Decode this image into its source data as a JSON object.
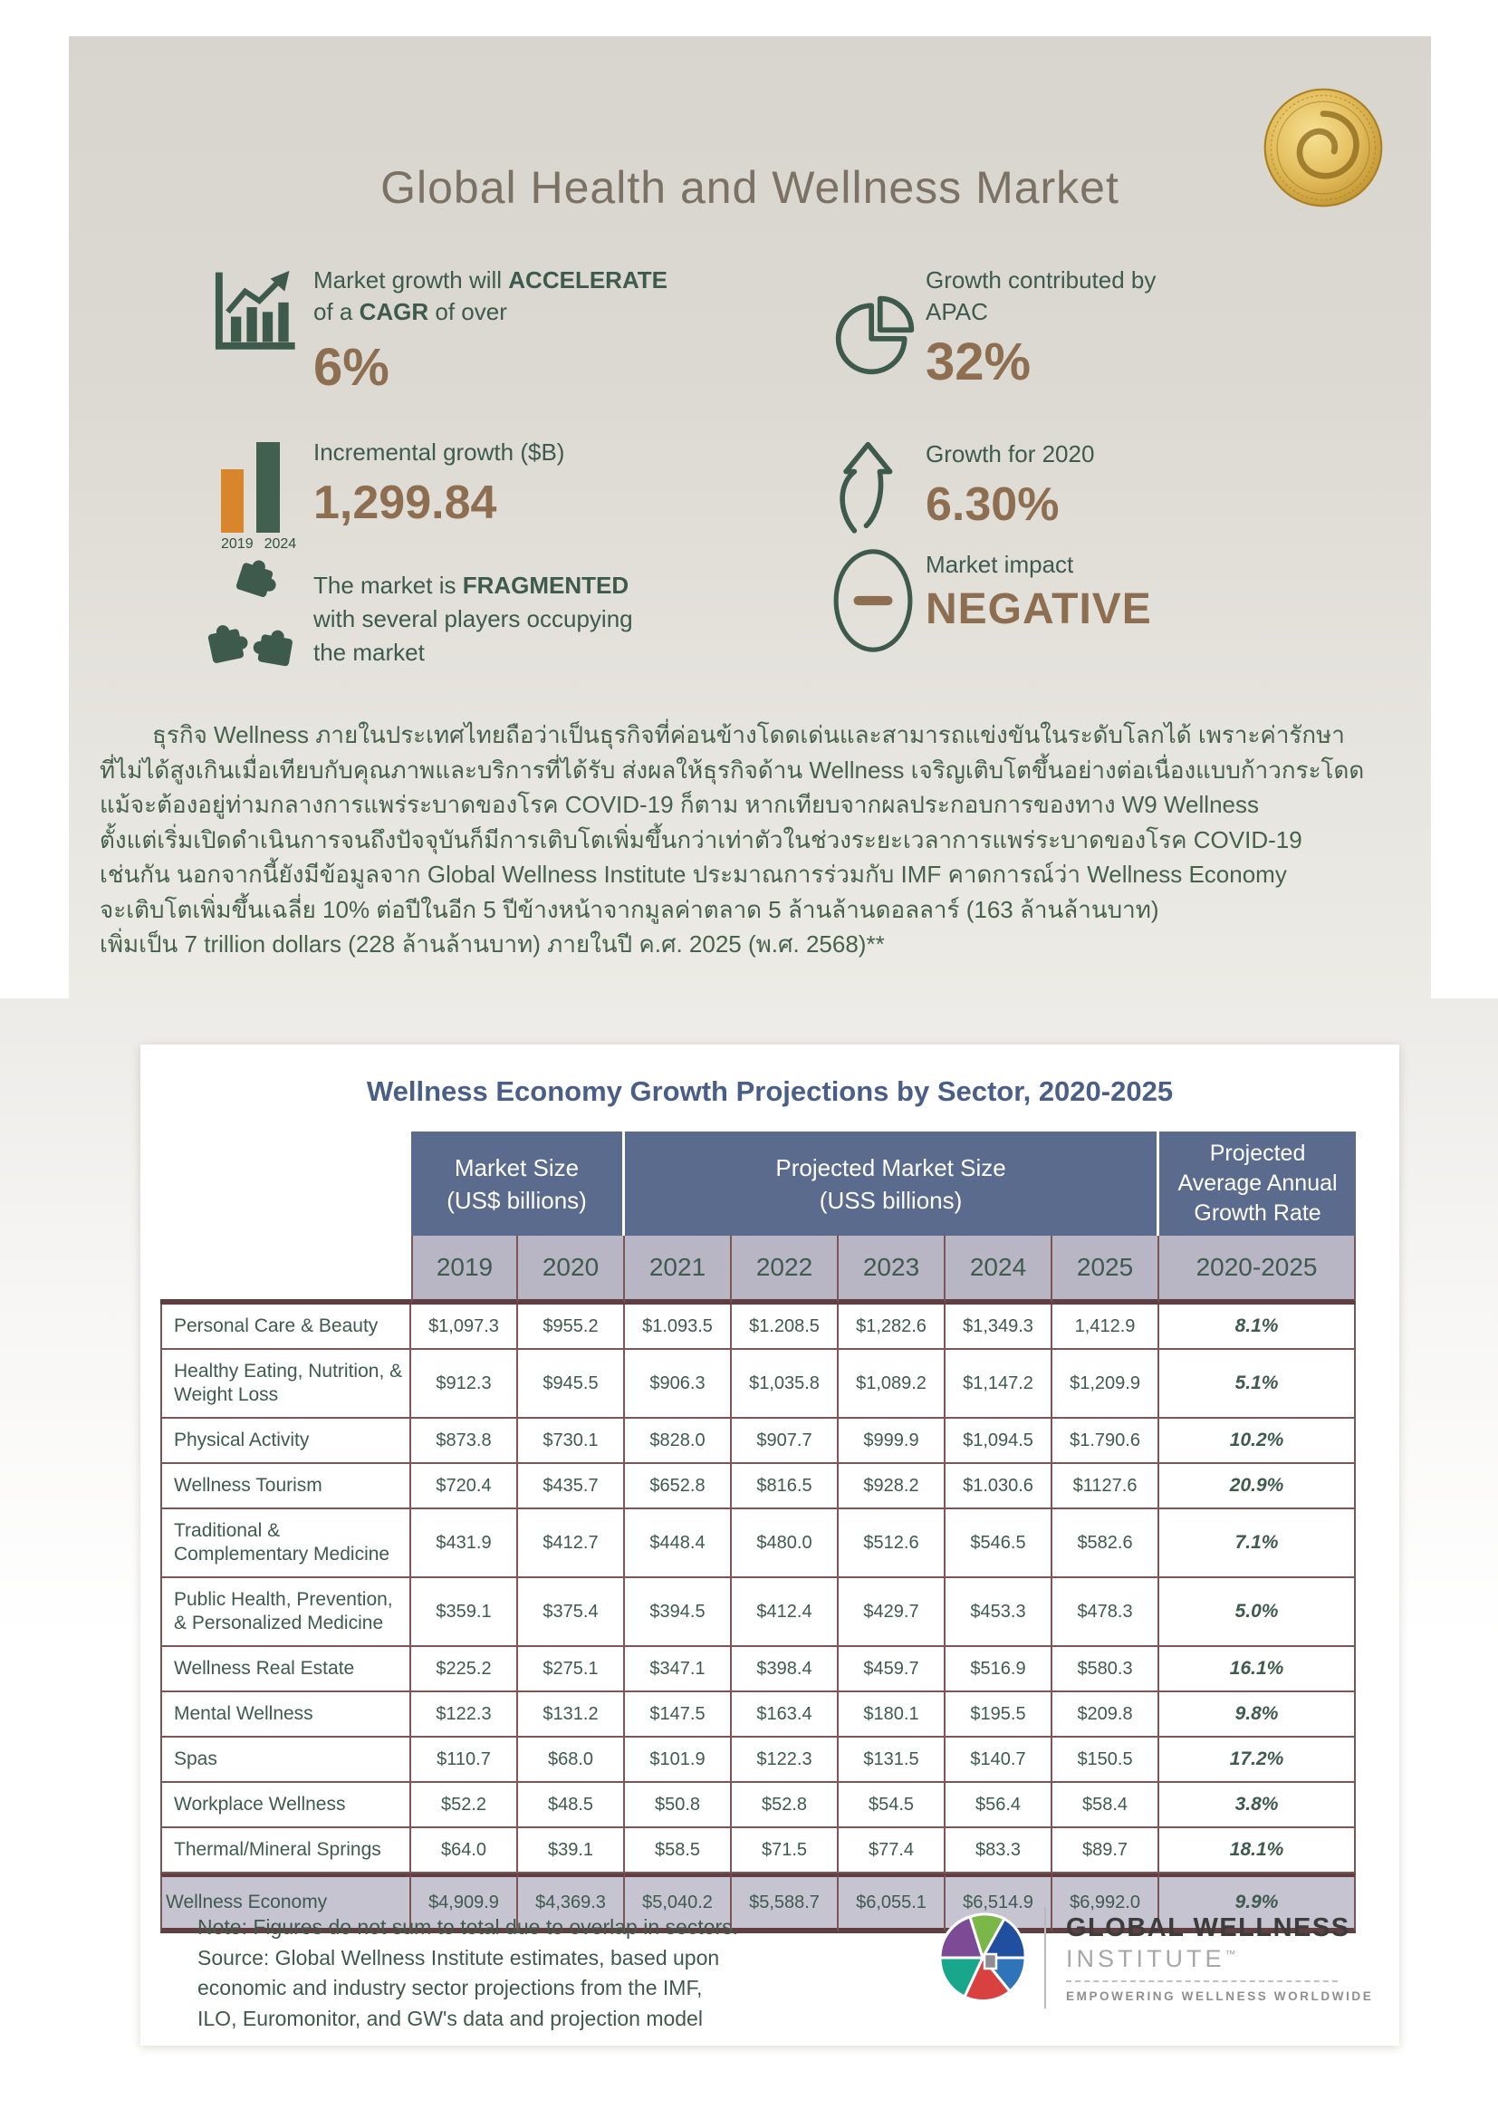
{
  "page_title": "Global Health and Wellness Market",
  "colors": {
    "green": "#3d5a4c",
    "brown": "#8d6e50",
    "orange": "#d8862c",
    "panel_beige": "#dcd9d2",
    "table_blue": "#5b6b8d",
    "title_blue": "#4a5f88",
    "lavender": "#b8b5c4",
    "total_lavender": "#c7c4d2",
    "maroon_border": "#7d5557",
    "gold": "#d4a945"
  },
  "hero": {
    "stats": {
      "cagr": {
        "l1a": "Market growth will ",
        "l1b": "ACCELERATE",
        "l2a": "of a ",
        "l2b": "CAGR",
        "l2c": " of over",
        "value": "6%"
      },
      "apac": {
        "l1": "Growth contributed by",
        "l2": "APAC",
        "value": "32%"
      },
      "incremental": {
        "label": "Incremental growth ($B)",
        "value": "1,299.84",
        "year_left": "2019",
        "year_right": "2024"
      },
      "growth2020": {
        "label": "Growth for 2020",
        "value": "6.30%"
      },
      "fragmented": {
        "l1a": "The market is ",
        "l1b": "FRAGMENTED",
        "l2": "with several players occupying",
        "l3": "the market"
      },
      "impact": {
        "label": "Market impact",
        "value": "NEGATIVE"
      }
    },
    "paragraph_lines": [
      "ธุรกิจ Wellness ภายในประเทศไทยถือว่าเป็นธุรกิจที่ค่อนข้างโดดเด่นและสามารถแข่งขันในระดับโลกได้ เพราะค่ารักษา",
      "ที่ไม่ได้สูงเกินเมื่อเทียบกับคุณภาพและบริการที่ได้รับ ส่งผลให้ธุรกิจด้าน Wellness เจริญเติบโตขึ้นอย่างต่อเนื่องแบบก้าวกระโดด",
      "แม้จะต้องอยู่ท่ามกลางการแพร่ระบาดของโรค COVID-19 ก็ตาม หากเทียบจากผลประกอบการของทาง W9 Wellness",
      "ตั้งแต่เริ่มเปิดดำเนินการจนถึงปัจจุบันก็มีการเติบโตเพิ่มขึ้นกว่าเท่าตัวในช่วงระยะเวลาการแพร่ระบาดของโรค COVID-19",
      "เช่นกัน นอกจากนี้ยังมีข้อมูลจาก Global Wellness Institute ประมาณการร่วมกับ IMF คาดการณ์ว่า Wellness Economy",
      "จะเติบโตเพิ่มขึ้นเฉลี่ย 10% ต่อปีในอีก 5 ปีข้างหน้าจากมูลค่าตลาด 5 ล้านล้านดอลลาร์ (163 ล้านล้านบาท)",
      "เพิ่มเป็น 7 trillion dollars (228 ล้านล้านบาท) ภายในปี ค.ศ. 2025 (พ.ศ. 2568)**"
    ]
  },
  "table": {
    "title": "Wellness Economy Growth Projections by Sector, 2020-2025",
    "groups": [
      {
        "line1": "Market Size",
        "line2": "(US$ billions)"
      },
      {
        "line1": "Projected Market Size",
        "line2": "(USS billions)"
      },
      {
        "line1": "Projected",
        "line2": "Average Annual",
        "line3": "Growth Rate"
      }
    ],
    "year_headers": [
      "2019",
      "2020",
      "2021",
      "2022",
      "2023",
      "2024",
      "2025",
      "2020-2025"
    ],
    "rows": [
      {
        "sector": "Personal Care & Beauty",
        "values": [
          "$1,097.3",
          "$955.2",
          "$1.093.5",
          "$1.208.5",
          "$1,282.6",
          "$1,349.3",
          "1,412.9"
        ],
        "growth": "8.1%"
      },
      {
        "sector": "Healthy Eating, Nutrition, & Weight Loss",
        "values": [
          "$912.3",
          "$945.5",
          "$906.3",
          "$1,035.8",
          "$1,089.2",
          "$1,147.2",
          "$1,209.9"
        ],
        "growth": "5.1%"
      },
      {
        "sector": "Physical Activity",
        "values": [
          "$873.8",
          "$730.1",
          "$828.0",
          "$907.7",
          "$999.9",
          "$1,094.5",
          "$1.790.6"
        ],
        "growth": "10.2%"
      },
      {
        "sector": "Wellness Tourism",
        "values": [
          "$720.4",
          "$435.7",
          "$652.8",
          "$816.5",
          "$928.2",
          "$1.030.6",
          "$1127.6"
        ],
        "growth": "20.9%"
      },
      {
        "sector": "Traditional & Complementary Medicine",
        "values": [
          "$431.9",
          "$412.7",
          "$448.4",
          "$480.0",
          "$512.6",
          "$546.5",
          "$582.6"
        ],
        "growth": "7.1%"
      },
      {
        "sector": "Public Health, Prevention, & Personalized Medicine",
        "values": [
          "$359.1",
          "$375.4",
          "$394.5",
          "$412.4",
          "$429.7",
          "$453.3",
          "$478.3"
        ],
        "growth": "5.0%"
      },
      {
        "sector": "Wellness Real Estate",
        "values": [
          "$225.2",
          "$275.1",
          "$347.1",
          "$398.4",
          "$459.7",
          "$516.9",
          "$580.3"
        ],
        "growth": "16.1%"
      },
      {
        "sector": "Mental Wellness",
        "values": [
          "$122.3",
          "$131.2",
          "$147.5",
          "$163.4",
          "$180.1",
          "$195.5",
          "$209.8"
        ],
        "growth": "9.8%"
      },
      {
        "sector": "Spas",
        "values": [
          "$110.7",
          "$68.0",
          "$101.9",
          "$122.3",
          "$131.5",
          "$140.7",
          "$150.5"
        ],
        "growth": "17.2%"
      },
      {
        "sector": "Workplace Wellness",
        "values": [
          "$52.2",
          "$48.5",
          "$50.8",
          "$52.8",
          "$54.5",
          "$56.4",
          "$58.4"
        ],
        "growth": "3.8%"
      },
      {
        "sector": "Thermal/Mineral Springs",
        "values": [
          "$64.0",
          "$39.1",
          "$58.5",
          "$71.5",
          "$77.4",
          "$83.3",
          "$89.7"
        ],
        "growth": "18.1%"
      },
      {
        "sector": "Wellness Economy",
        "values": [
          "$4,909.9",
          "$4,369.3",
          "$5,040.2",
          "$5,588.7",
          "$6,055.1",
          "$6,514.9",
          "$6,992.0"
        ],
        "growth": "9.9%",
        "total": true
      }
    ]
  },
  "footer": {
    "note_lines": [
      "Note: Figures do not sum to total due to overlap in sectors.",
      "Source: Global Wellness Institute estimates, based upon",
      "economic and industry sector projections from the IMF,",
      "ILO, Euromonitor, and GW's data and projection model"
    ],
    "logo": {
      "line1": "GLOBAL WELLNESS",
      "line2": "INSTITUTE",
      "tm": "™",
      "tagline": "EMPOWERING WELLNESS WORLDWIDE"
    }
  }
}
